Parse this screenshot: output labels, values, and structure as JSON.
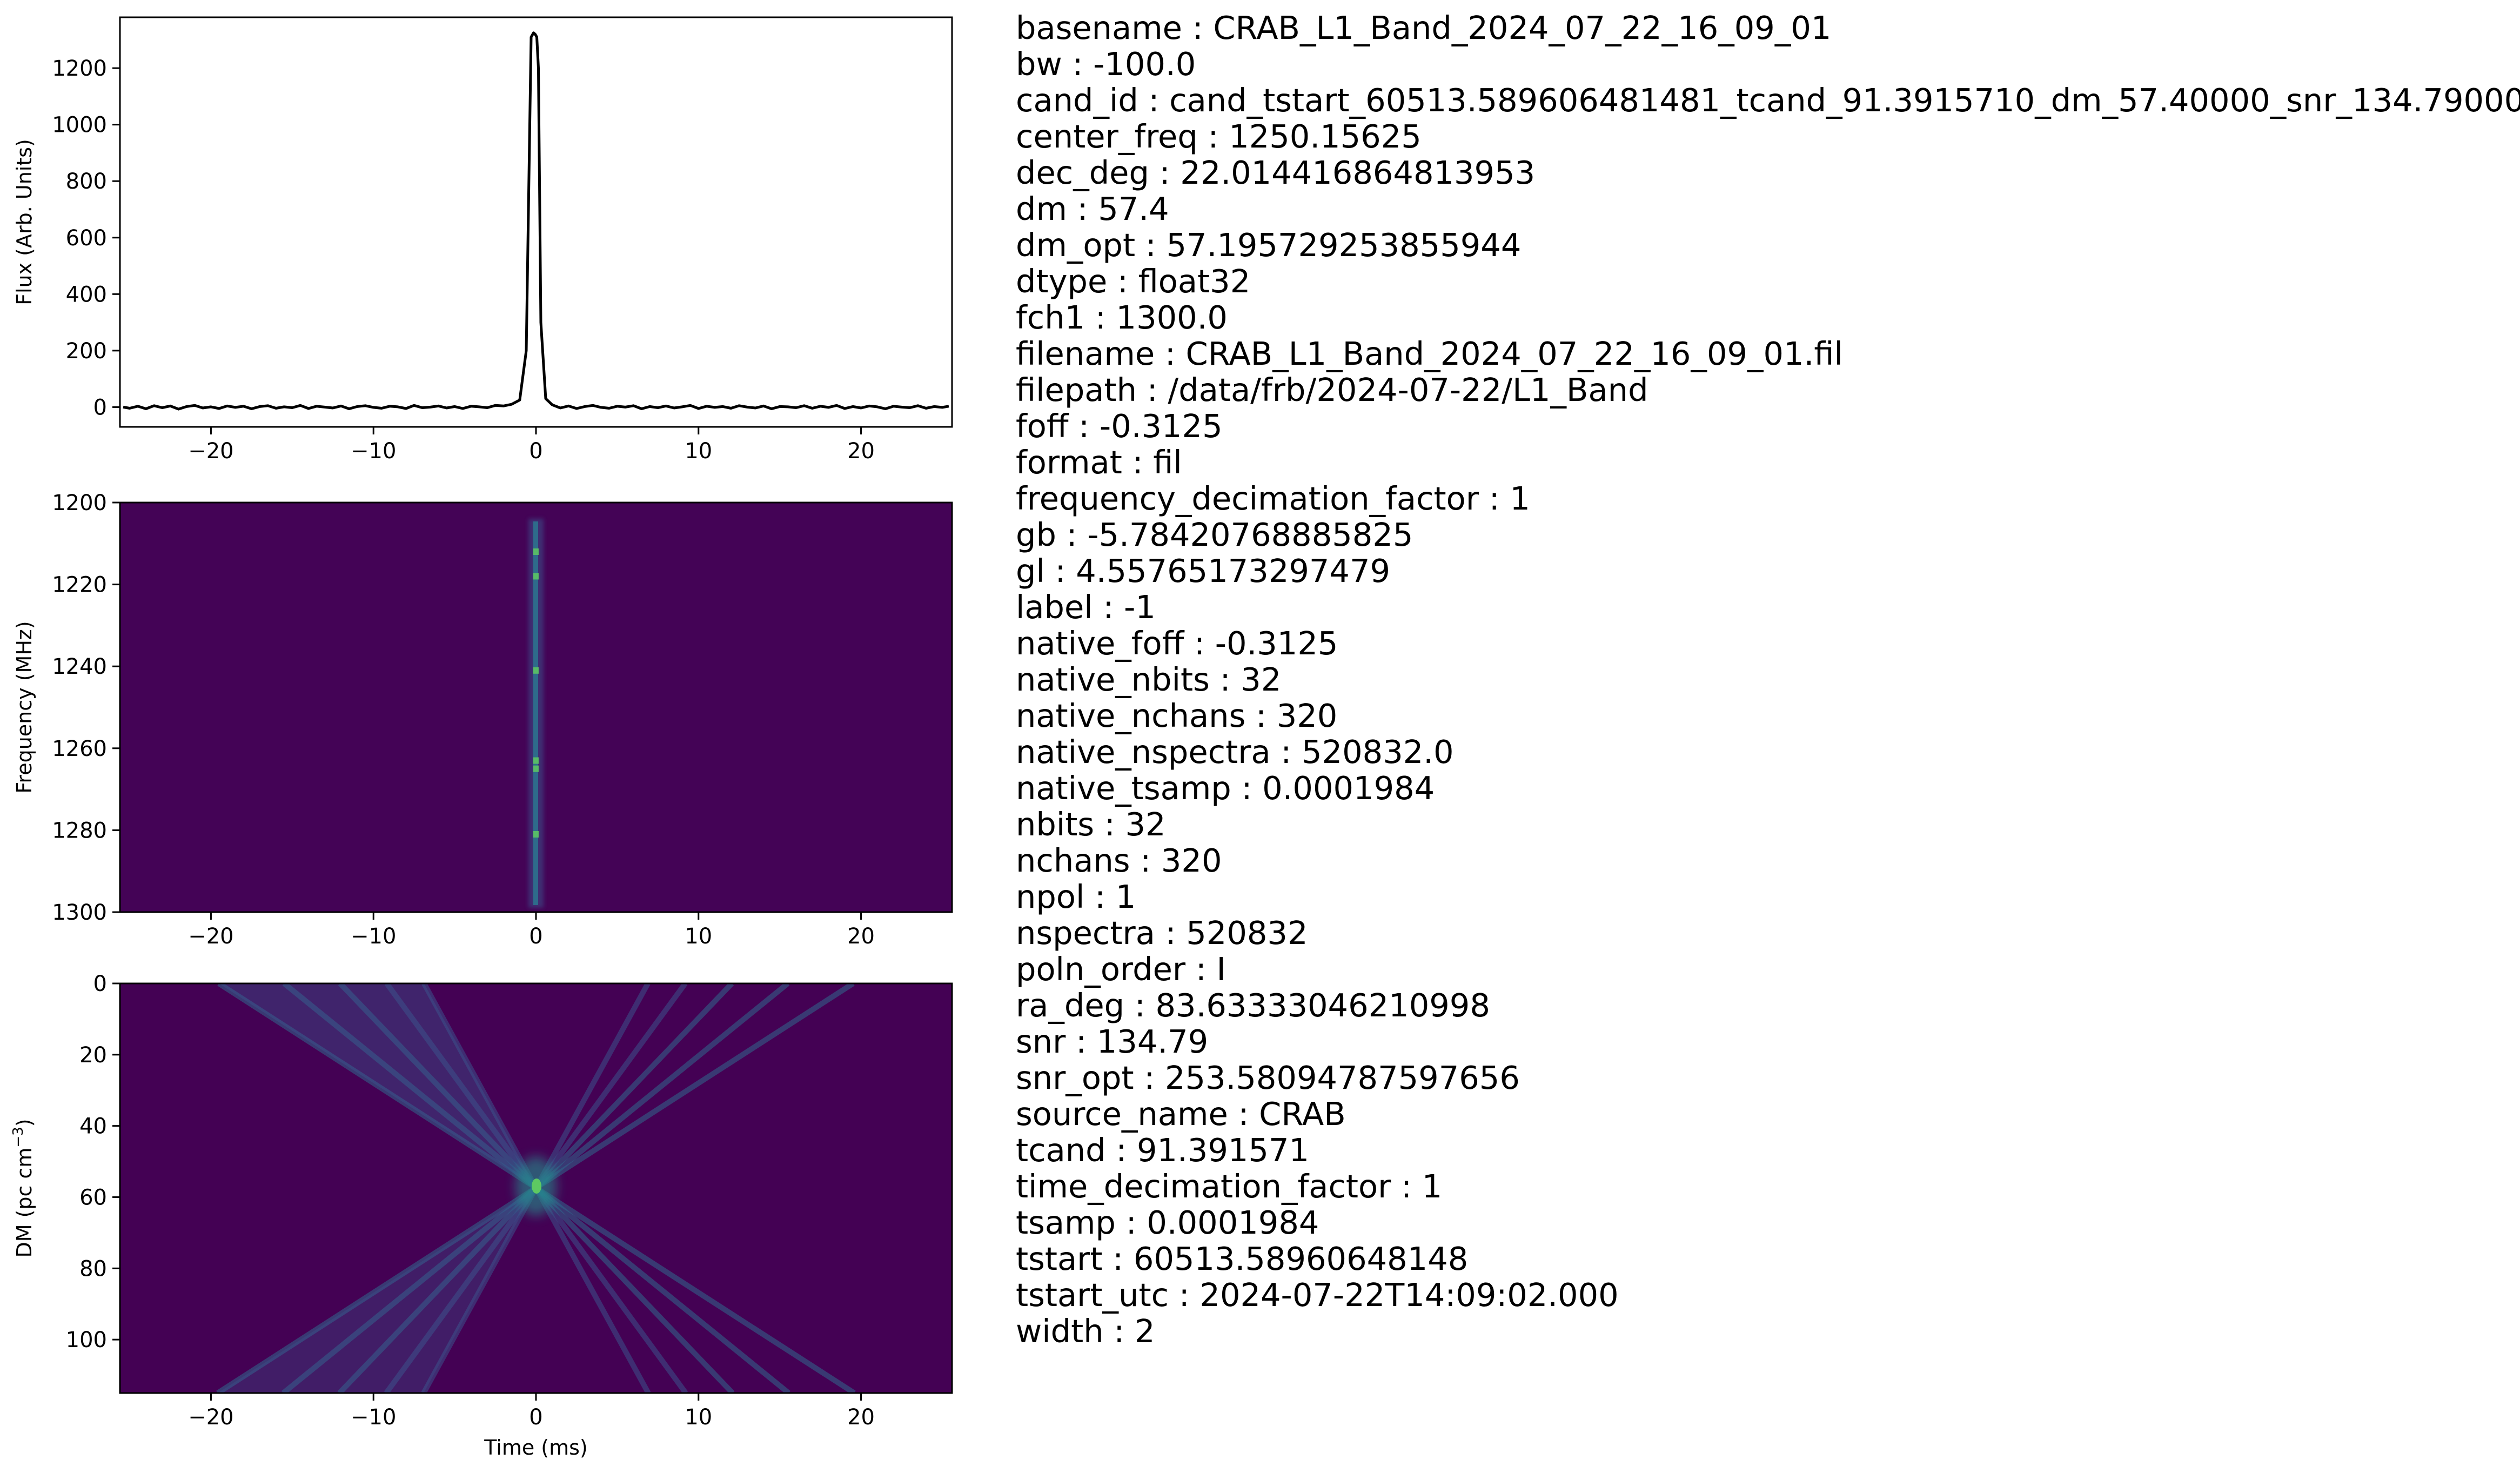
{
  "figure": {
    "panels": [
      {
        "id": "profile",
        "ylabel": "Flux (Arb. Units)",
        "xlabel": "",
        "xticks": [
          "−20",
          "−10",
          "0",
          "10",
          "20"
        ],
        "xtick_values": [
          -20,
          -10,
          0,
          10,
          20
        ],
        "yticks": [
          "0",
          "200",
          "400",
          "600",
          "800",
          "1000",
          "1200"
        ],
        "ytick_values": [
          0,
          200,
          400,
          600,
          800,
          1000,
          1200
        ]
      },
      {
        "id": "waterfall",
        "ylabel": "Frequency (MHz)",
        "xlabel": "",
        "xticks": [
          "−20",
          "−10",
          "0",
          "10",
          "20"
        ],
        "xtick_values": [
          -20,
          -10,
          0,
          10,
          20
        ],
        "yticks": [
          "1200",
          "1220",
          "1240",
          "1260",
          "1280",
          "1300"
        ],
        "ytick_values": [
          1200,
          1220,
          1240,
          1260,
          1280,
          1300
        ]
      },
      {
        "id": "dmtime",
        "ylabel": "DM (pc cm",
        "ylabel_sup": "−3",
        "ylabel_close": ")",
        "xlabel": "Time (ms)",
        "xticks": [
          "−20",
          "−10",
          "0",
          "10",
          "20"
        ],
        "xtick_values": [
          -20,
          -10,
          0,
          10,
          20
        ],
        "yticks": [
          "0",
          "20",
          "40",
          "60",
          "80",
          "100"
        ],
        "ytick_values": [
          0,
          20,
          40,
          60,
          80,
          100
        ]
      }
    ],
    "colors": {
      "line": "#000000",
      "viridis_bg": "#440154",
      "viridis_mid": "#3b528b",
      "viridis_hi": "#21918c",
      "viridis_peak": "#5ec962"
    }
  },
  "chart_data": [
    {
      "type": "line",
      "title": "",
      "xlabel": "",
      "ylabel": "Flux (Arb. Units)",
      "xlim": [
        -25.6,
        25.6
      ],
      "ylim": [
        -70,
        1380
      ],
      "series": [
        {
          "x": [
            -25.4,
            -25,
            -24.5,
            -24,
            -23.5,
            -23,
            -22.5,
            -22,
            -21.5,
            -21,
            -20.5,
            -20,
            -19.5,
            -19,
            -18.5,
            -18,
            -17.5,
            -17,
            -16.5,
            -16,
            -15.5,
            -15,
            -14.5,
            -14,
            -13.5,
            -13,
            -12.5,
            -12,
            -11.5,
            -11,
            -10.5,
            -10,
            -9.5,
            -9,
            -8.5,
            -8,
            -7.5,
            -7,
            -6.5,
            -6,
            -5.5,
            -5,
            -4.5,
            -4,
            -3.5,
            -3,
            -2.5,
            -2,
            -1.5,
            -1,
            -0.6,
            -0.3,
            -0.15,
            -0.05,
            0.05,
            0.15,
            0.3,
            0.6,
            1,
            1.5,
            2,
            2.5,
            3,
            3.5,
            4,
            4.5,
            5,
            5.5,
            6,
            6.5,
            7,
            7.5,
            8,
            8.5,
            9,
            9.5,
            10,
            10.5,
            11,
            11.5,
            12,
            12.5,
            13,
            13.5,
            14,
            14.5,
            15,
            15.5,
            16,
            16.5,
            17,
            17.5,
            18,
            18.5,
            19,
            19.5,
            20,
            20.5,
            21,
            21.5,
            22,
            22.5,
            23,
            23.5,
            24,
            24.5,
            25,
            25.4
          ],
          "values": [
            0,
            -4,
            3,
            -6,
            5,
            -2,
            4,
            -7,
            2,
            6,
            -3,
            1,
            -5,
            4,
            -1,
            3,
            -6,
            2,
            5,
            -4,
            1,
            -2,
            6,
            -5,
            3,
            0,
            -3,
            4,
            -6,
            2,
            5,
            -1,
            -4,
            3,
            1,
            -5,
            6,
            -2,
            0,
            4,
            -3,
            2,
            -5,
            3,
            1,
            -2,
            6,
            4,
            10,
            25,
            200,
            1310,
            1325,
            1320,
            1310,
            1200,
            300,
            30,
            8,
            -3,
            4,
            -5,
            2,
            6,
            -1,
            -4,
            3,
            0,
            5,
            -6,
            2,
            -2,
            4,
            -3,
            1,
            6,
            -5,
            3,
            -1,
            2,
            -4,
            5,
            0,
            -3,
            4,
            -6,
            2,
            1,
            -2,
            5,
            -4,
            3,
            -1,
            6,
            -5,
            2,
            -3,
            4,
            1,
            -6,
            3,
            0,
            -2,
            5,
            -4,
            2,
            -1,
            3
          ]
        }
      ]
    },
    {
      "type": "heatmap",
      "title": "",
      "xlabel": "",
      "ylabel": "Frequency (MHz)",
      "xlim": [
        -25.6,
        25.6
      ],
      "ylim": [
        1300,
        1200
      ],
      "colormap": "viridis",
      "signal_time_ms": 0,
      "signal_freq_range": [
        1205,
        1285
      ],
      "hotspots_mhz": [
        1212,
        1218,
        1241,
        1263,
        1265,
        1281
      ]
    },
    {
      "type": "heatmap",
      "title": "",
      "xlabel": "Time (ms)",
      "ylabel": "DM (pc cm−3)",
      "xlim": [
        -25.6,
        25.6
      ],
      "ylim": [
        115,
        0
      ],
      "colormap": "viridis",
      "peak": {
        "time_ms": 0,
        "dm": 57.4
      }
    }
  ],
  "meta": [
    "basename : CRAB_L1_Band_2024_07_22_16_09_01",
    "bw : -100.0",
    "cand_id : cand_tstart_60513.589606481481_tcand_91.3915710_dm_57.40000_snr_134.79000",
    "center_freq : 1250.15625",
    "dec_deg : 22.014416864813953",
    "dm : 57.4",
    "dm_opt : 57.195729253855944",
    "dtype : float32",
    "fch1 : 1300.0",
    "filename : CRAB_L1_Band_2024_07_22_16_09_01.fil",
    "filepath : /data/frb/2024-07-22/L1_Band",
    "foff : -0.3125",
    "format : fil",
    "frequency_decimation_factor : 1",
    "gb : -5.78420768885825",
    "gl : 4.55765173297479",
    "label : -1",
    "native_foff : -0.3125",
    "native_nbits : 32",
    "native_nchans : 320",
    "native_nspectra : 520832.0",
    "native_tsamp : 0.0001984",
    "nbits : 32",
    "nchans : 320",
    "npol : 1",
    "nspectra : 520832",
    "poln_order : I",
    "ra_deg : 83.63333046210998",
    "snr : 134.79",
    "snr_opt : 253.58094787597656",
    "source_name : CRAB",
    "tcand : 91.391571",
    "time_decimation_factor : 1",
    "tsamp : 0.0001984",
    "tstart : 60513.58960648148",
    "tstart_utc : 2024-07-22T14:09:02.000",
    "width : 2"
  ]
}
